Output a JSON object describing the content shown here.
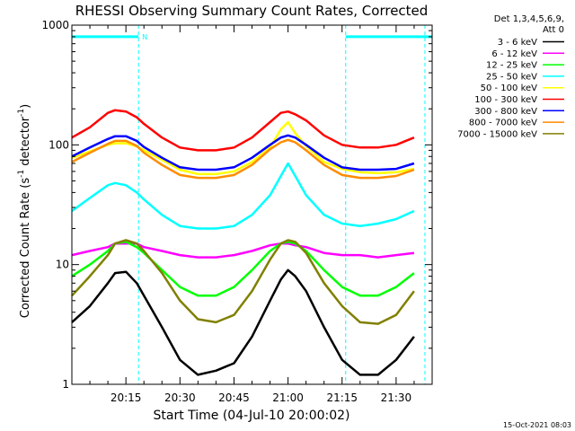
{
  "chart_data": {
    "type": "line",
    "title": "RHESSI Observing Summary Count Rates, Corrected",
    "xlabel": "Start Time (04-Jul-10 20:00:02)",
    "ylabel_main": "Corrected Count Rate (s",
    "ylabel_sup1": "-1",
    "ylabel_mid": " detector",
    "ylabel_sup2": "-1",
    "ylabel_end": ")",
    "y_scale": "log",
    "ylim": [
      1,
      1000
    ],
    "x_range_minutes": [
      0,
      100
    ],
    "x_ticks": [
      {
        "minute": 15,
        "label": "20:15"
      },
      {
        "minute": 30,
        "label": "20:30"
      },
      {
        "minute": 45,
        "label": "20:45"
      },
      {
        "minute": 60,
        "label": "21:00"
      },
      {
        "minute": 75,
        "label": "21:15"
      },
      {
        "minute": 90,
        "label": "21:30"
      }
    ],
    "y_ticks": [
      {
        "value": 1,
        "label": "1"
      },
      {
        "value": 10,
        "label": "10"
      },
      {
        "value": 100,
        "label": "100"
      },
      {
        "value": 1000,
        "label": "1000"
      }
    ],
    "legend_header": [
      "Det 1,3,4,5,6,9,",
      "Att 0"
    ],
    "legend_position": "right",
    "x": [
      0,
      5,
      10,
      12,
      15,
      18,
      20,
      25,
      30,
      35,
      40,
      45,
      50,
      55,
      58,
      60,
      62,
      65,
      70,
      75,
      80,
      85,
      90,
      95
    ],
    "series": [
      {
        "name": "3 - 6 keV",
        "color": "#000000",
        "values": [
          3.3,
          4.5,
          7.0,
          8.5,
          8.7,
          7.0,
          5.5,
          3.0,
          1.6,
          1.2,
          1.3,
          1.5,
          2.5,
          5.0,
          7.5,
          9.0,
          8.0,
          6.0,
          3.0,
          1.6,
          1.2,
          1.2,
          1.6,
          2.5
        ]
      },
      {
        "name": "6 - 12 keV",
        "color": "#ff00ff",
        "values": [
          12,
          13,
          14,
          15,
          15,
          15,
          14,
          13,
          12,
          11.5,
          11.5,
          12,
          13,
          14.5,
          15,
          15,
          14.5,
          14,
          12.5,
          12,
          12,
          11.5,
          12,
          12.5
        ]
      },
      {
        "name": "12 - 25 keV",
        "color": "#00ff00",
        "values": [
          8,
          10,
          13,
          15,
          15.5,
          14,
          12.5,
          9,
          6.5,
          5.5,
          5.5,
          6.5,
          9,
          13,
          15,
          15.5,
          15,
          13,
          9,
          6.5,
          5.5,
          5.5,
          6.5,
          8.5
        ]
      },
      {
        "name": "25 - 50 keV",
        "color": "#00ffff",
        "values": [
          28,
          36,
          46,
          48,
          46,
          40,
          35,
          26,
          21,
          20,
          20,
          21,
          26,
          38,
          55,
          70,
          55,
          38,
          26,
          22,
          21,
          22,
          24,
          28
        ]
      },
      {
        "name": "50 - 100 keV",
        "color": "#ffff00",
        "values": [
          78,
          88,
          100,
          103,
          103,
          97,
          90,
          75,
          62,
          57,
          57,
          60,
          72,
          95,
          135,
          155,
          125,
          98,
          72,
          63,
          59,
          58,
          59,
          63
        ]
      },
      {
        "name": "100 - 300 keV",
        "color": "#ff0000",
        "values": [
          115,
          140,
          185,
          195,
          190,
          170,
          150,
          115,
          95,
          90,
          90,
          95,
          115,
          155,
          185,
          190,
          180,
          160,
          120,
          100,
          95,
          95,
          100,
          115
        ]
      },
      {
        "name": "300 - 800 keV",
        "color": "#0000ff",
        "values": [
          80,
          95,
          112,
          118,
          118,
          108,
          96,
          78,
          65,
          62,
          62,
          65,
          78,
          100,
          115,
          120,
          115,
          100,
          78,
          65,
          62,
          62,
          63,
          70
        ]
      },
      {
        "name": "800 - 7000 keV",
        "color": "#ff8c00",
        "values": [
          72,
          86,
          102,
          108,
          108,
          98,
          86,
          68,
          56,
          53,
          53,
          56,
          68,
          92,
          105,
          110,
          105,
          90,
          68,
          56,
          53,
          53,
          55,
          62
        ]
      },
      {
        "name": "7000 - 15000 keV",
        "color": "#808000",
        "values": [
          5.5,
          8,
          12,
          15,
          16,
          15,
          13,
          8.5,
          5,
          3.5,
          3.3,
          3.8,
          6,
          11,
          15,
          16,
          15.5,
          12.5,
          7,
          4.5,
          3.3,
          3.2,
          3.8,
          6
        ]
      }
    ],
    "attenuator_level": 800,
    "attenuator_spans": [
      [
        0,
        18.5
      ],
      [
        76,
        100
      ]
    ],
    "attenuator_marker": "N",
    "marker_lines_minutes": [
      0,
      18.5,
      76,
      98
    ]
  },
  "footer": {
    "timestamp": "15-Oct-2021 08:03"
  }
}
